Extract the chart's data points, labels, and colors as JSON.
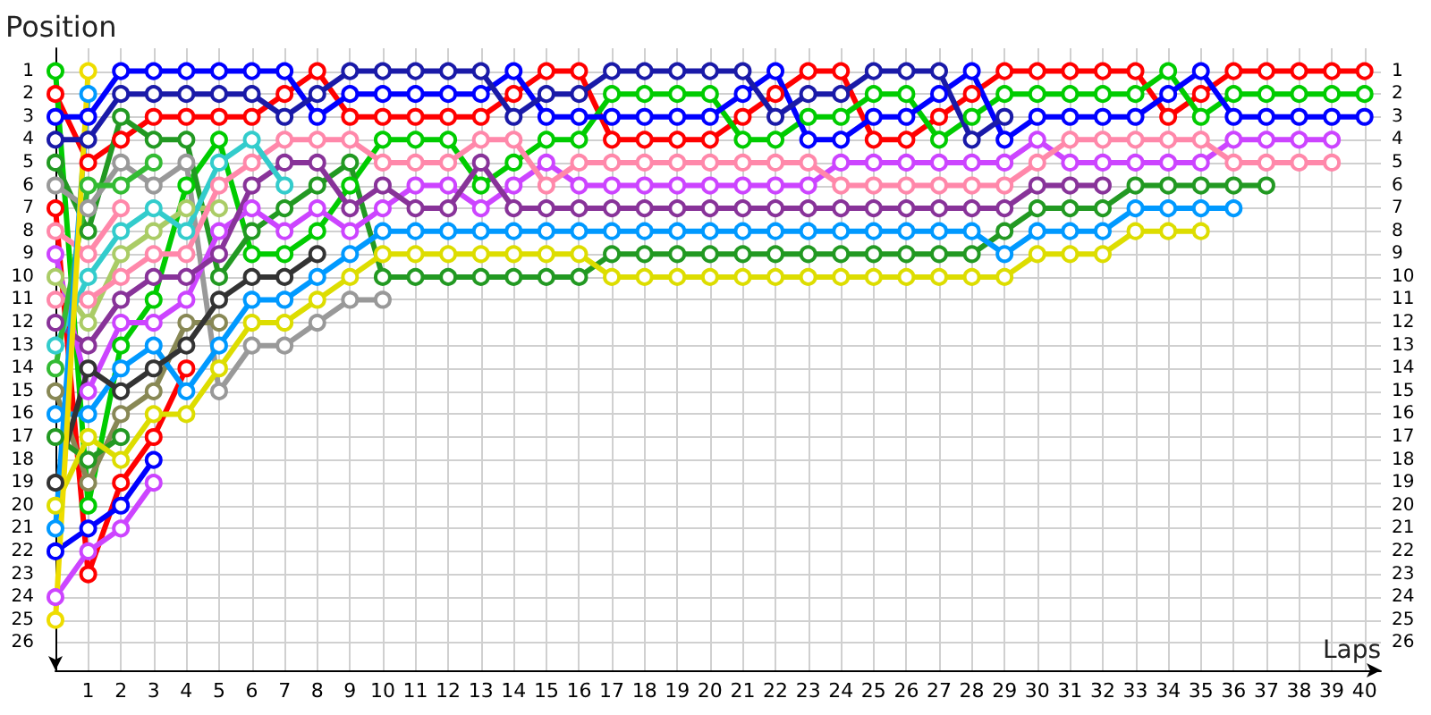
{
  "chart_data": {
    "type": "line",
    "xlabel": "Laps",
    "ylabel": "Position",
    "x": [
      0,
      1,
      2,
      3,
      4,
      5,
      6,
      7,
      8,
      9,
      10,
      11,
      12,
      13,
      14,
      15,
      16,
      17,
      18,
      19,
      20,
      21,
      22,
      23,
      24,
      25,
      26,
      27,
      28,
      29,
      30,
      31,
      32,
      33,
      34,
      35,
      36,
      37,
      38,
      39,
      40
    ],
    "xlim": [
      0,
      40.5
    ],
    "xticks": [
      1,
      2,
      3,
      4,
      5,
      6,
      7,
      8,
      9,
      10,
      11,
      12,
      13,
      14,
      15,
      16,
      17,
      18,
      19,
      20,
      21,
      22,
      23,
      24,
      25,
      26,
      27,
      28,
      29,
      30,
      31,
      32,
      33,
      34,
      35,
      36,
      37,
      38,
      39,
      40
    ],
    "ylim": [
      27.2,
      0
    ],
    "yticks": [
      1,
      2,
      3,
      4,
      5,
      6,
      7,
      8,
      9,
      10,
      11,
      12,
      13,
      14,
      15,
      16,
      17,
      18,
      19,
      20,
      21,
      22,
      23,
      24,
      25,
      26
    ],
    "y2lim": [
      27.2,
      0
    ],
    "y2ticks": [
      1,
      2,
      3,
      4,
      5,
      6,
      7,
      8,
      9,
      10,
      11,
      12,
      13,
      14,
      15,
      16,
      17,
      18,
      19,
      20,
      21,
      22,
      23,
      24,
      25,
      26
    ],
    "grid": true,
    "marker": "circle",
    "series": [
      {
        "color": "#ff0000",
        "values": [
          2,
          5,
          4,
          3,
          3,
          3,
          3,
          2,
          1,
          3,
          3,
          3,
          3,
          3,
          2,
          1,
          1,
          4,
          4,
          4,
          4,
          3,
          2,
          1,
          1,
          4,
          4,
          3,
          2,
          1,
          1,
          1,
          1,
          1,
          3,
          2,
          1,
          1,
          1,
          1,
          1
        ]
      },
      {
        "color": "#00cc00",
        "values": [
          1,
          20,
          13,
          11,
          6,
          4,
          9,
          9,
          8,
          6,
          4,
          4,
          4,
          6,
          5,
          4,
          4,
          2,
          2,
          2,
          2,
          4,
          4,
          3,
          3,
          2,
          2,
          4,
          3,
          2,
          2,
          2,
          2,
          2,
          1,
          3,
          2,
          2,
          2,
          2,
          2
        ]
      },
      {
        "color": "#0000ff",
        "values": [
          3,
          3,
          1,
          1,
          1,
          1,
          1,
          1,
          3,
          2,
          2,
          2,
          2,
          2,
          1,
          3,
          3,
          3,
          3,
          3,
          3,
          2,
          1,
          4,
          4,
          3,
          3,
          2,
          1,
          4,
          3,
          3,
          3,
          3,
          2,
          1,
          3,
          3,
          3,
          3,
          3
        ]
      },
      {
        "color": "#1a1aa8",
        "x": [
          0,
          1,
          2,
          3,
          4,
          5,
          6,
          7,
          8,
          9,
          10,
          11,
          12,
          13,
          14,
          15,
          16,
          17,
          18,
          19,
          20,
          21,
          22,
          23,
          24,
          25,
          26,
          27,
          28,
          29
        ],
        "values": [
          4,
          4,
          2,
          2,
          2,
          2,
          2,
          3,
          2,
          1,
          1,
          1,
          1,
          1,
          3,
          2,
          2,
          1,
          1,
          1,
          1,
          1,
          3,
          2,
          2,
          1,
          1,
          1,
          4,
          3
        ]
      },
      {
        "color": "#229922",
        "x": [
          0,
          1,
          2,
          3,
          4,
          5,
          6,
          7,
          8,
          9,
          10,
          11,
          12,
          13,
          14,
          15,
          16,
          17,
          18,
          19,
          20,
          21,
          22,
          23,
          24,
          25,
          26,
          27,
          28,
          29,
          30,
          31,
          32,
          33,
          34,
          35,
          36,
          37
        ],
        "values": [
          5,
          8,
          3,
          4,
          4,
          10,
          8,
          7,
          6,
          5,
          10,
          10,
          10,
          10,
          10,
          10,
          10,
          9,
          9,
          9,
          9,
          9,
          9,
          9,
          9,
          9,
          9,
          9,
          9,
          8,
          7,
          7,
          7,
          6,
          6,
          6,
          6,
          6
        ]
      },
      {
        "color": "#999999",
        "x": [
          0,
          1,
          2,
          3,
          4,
          5,
          6,
          7,
          8,
          9,
          10
        ],
        "values": [
          6,
          7,
          5,
          6,
          5,
          15,
          13,
          13,
          12,
          11,
          11
        ]
      },
      {
        "color": "#ff0000",
        "x": [
          0,
          1,
          2,
          3,
          4
        ],
        "values": [
          7,
          23,
          19,
          17,
          14
        ]
      },
      {
        "color": "#ff88aa",
        "x": [
          0,
          1,
          2
        ],
        "values": [
          8,
          9,
          7
        ]
      },
      {
        "color": "#cc44ff",
        "x": [
          0,
          1,
          2,
          3,
          4,
          5,
          6,
          7,
          8,
          9,
          10,
          11,
          12,
          13,
          14,
          15,
          16,
          17,
          18,
          19,
          20,
          21,
          22,
          23,
          24,
          25,
          26,
          27,
          28,
          29,
          30,
          31,
          32,
          33,
          34,
          35,
          36,
          37,
          38,
          39
        ],
        "values": [
          9,
          15,
          12,
          12,
          11,
          8,
          7,
          8,
          7,
          8,
          7,
          6,
          6,
          7,
          6,
          5,
          6,
          6,
          6,
          6,
          6,
          6,
          6,
          6,
          5,
          5,
          5,
          5,
          5,
          5,
          4,
          5,
          5,
          5,
          5,
          5,
          4,
          4,
          4,
          4
        ]
      },
      {
        "color": "#aacc66",
        "x": [
          0,
          1,
          2,
          3,
          4,
          5
        ],
        "values": [
          10,
          12,
          9,
          8,
          7,
          7
        ]
      },
      {
        "color": "#ff88aa",
        "x": [
          0,
          1,
          2,
          3,
          4,
          5,
          6,
          7,
          8,
          9,
          10,
          11,
          12,
          13,
          14,
          15,
          16,
          17,
          18,
          19,
          20,
          21,
          22,
          23,
          24,
          25,
          26,
          27,
          28,
          29,
          30,
          31,
          32,
          33,
          34,
          35,
          36,
          37,
          38,
          39
        ],
        "values": [
          11,
          11,
          10,
          9,
          9,
          6,
          5,
          4,
          4,
          4,
          5,
          5,
          5,
          4,
          4,
          6,
          5,
          5,
          5,
          5,
          5,
          5,
          5,
          5,
          6,
          6,
          6,
          6,
          6,
          6,
          5,
          4,
          4,
          4,
          4,
          4,
          5,
          5,
          5,
          5
        ]
      },
      {
        "color": "#883399",
        "x": [
          0,
          1,
          2,
          3,
          4,
          5,
          6,
          7,
          8,
          9,
          10,
          11,
          12,
          13,
          14,
          15,
          16,
          17,
          18,
          19,
          20,
          21,
          22,
          23,
          24,
          25,
          26,
          27,
          28,
          29,
          30,
          31,
          32
        ],
        "values": [
          12,
          13,
          11,
          10,
          10,
          9,
          6,
          5,
          5,
          7,
          6,
          7,
          7,
          5,
          7,
          7,
          7,
          7,
          7,
          7,
          7,
          7,
          7,
          7,
          7,
          7,
          7,
          7,
          7,
          7,
          6,
          6,
          6
        ]
      },
      {
        "color": "#33cccc",
        "x": [
          0,
          1,
          2,
          3,
          4,
          5,
          6,
          7
        ],
        "values": [
          13,
          10,
          8,
          7,
          8,
          5,
          4,
          6
        ]
      },
      {
        "color": "#33bb33",
        "x": [
          0,
          1,
          2,
          3
        ],
        "values": [
          14,
          6,
          6,
          5
        ]
      },
      {
        "color": "#888855",
        "x": [
          0,
          1,
          2,
          3,
          4,
          5
        ],
        "values": [
          15,
          19,
          16,
          15,
          12,
          12
        ]
      },
      {
        "color": "#0099ff",
        "x": [
          0,
          1,
          2,
          3,
          4,
          5,
          6,
          7,
          8,
          9,
          10,
          11,
          12,
          13,
          14,
          15,
          16,
          17,
          18,
          19,
          20,
          21,
          22,
          23,
          24,
          25,
          26,
          27,
          28,
          29,
          30,
          31,
          32,
          33,
          34,
          35,
          36
        ],
        "values": [
          16,
          16,
          14,
          13,
          15,
          13,
          11,
          11,
          10,
          9,
          8,
          8,
          8,
          8,
          8,
          8,
          8,
          8,
          8,
          8,
          8,
          8,
          8,
          8,
          8,
          8,
          8,
          8,
          8,
          9,
          8,
          8,
          8,
          7,
          7,
          7,
          7
        ]
      },
      {
        "color": "#229922",
        "x": [
          0,
          1,
          2
        ],
        "values": [
          17,
          18,
          17
        ]
      },
      {
        "color": "#333333",
        "x": [
          0,
          1,
          2,
          3,
          4,
          5,
          6,
          7,
          8
        ],
        "values": [
          19,
          14,
          15,
          14,
          13,
          11,
          10,
          10,
          9
        ]
      },
      {
        "color": "#dddd00",
        "x": [
          0,
          1,
          2,
          3,
          4,
          5,
          6,
          7,
          8,
          9,
          10,
          11,
          12,
          13,
          14,
          15,
          16,
          17,
          18,
          19,
          20,
          21,
          22,
          23,
          24,
          25,
          26,
          27,
          28,
          29,
          30,
          31,
          32,
          33,
          34,
          35
        ],
        "values": [
          20,
          17,
          18,
          16,
          16,
          14,
          12,
          12,
          11,
          10,
          9,
          9,
          9,
          9,
          9,
          9,
          9,
          10,
          10,
          10,
          10,
          10,
          10,
          10,
          10,
          10,
          10,
          10,
          10,
          10,
          9,
          9,
          9,
          8,
          8,
          8
        ]
      },
      {
        "color": "#0099ff",
        "x": [
          0,
          1
        ],
        "values": [
          21,
          2
        ]
      },
      {
        "color": "#0000ff",
        "x": [
          0,
          1,
          2,
          3
        ],
        "values": [
          22,
          21,
          20,
          18
        ]
      },
      {
        "color": "#cc44ff",
        "x": [
          0,
          1,
          2,
          3
        ],
        "values": [
          24,
          22,
          21,
          19
        ]
      },
      {
        "color": "#eedd00",
        "x": [
          0,
          1
        ],
        "values": [
          25,
          1
        ]
      }
    ]
  }
}
